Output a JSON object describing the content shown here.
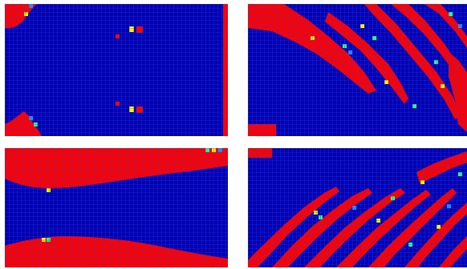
{
  "figure": {
    "description_none": "",
    "colormap": {
      "low": "#0000b4",
      "mid_low": "#1f8fff",
      "mid": "#22ff88",
      "mid_high": "#f5f500",
      "high": "#ff0000",
      "grid_line": "#3a3ad0"
    },
    "panels": [
      {
        "id": "top-left",
        "dominant": "blue",
        "accent": "red"
      },
      {
        "id": "top-right",
        "dominant": "blue",
        "accent": "red"
      },
      {
        "id": "bottom-left",
        "dominant": "blue",
        "accent": "red"
      },
      {
        "id": "bottom-right",
        "dominant": "blue",
        "accent": "red"
      }
    ]
  }
}
